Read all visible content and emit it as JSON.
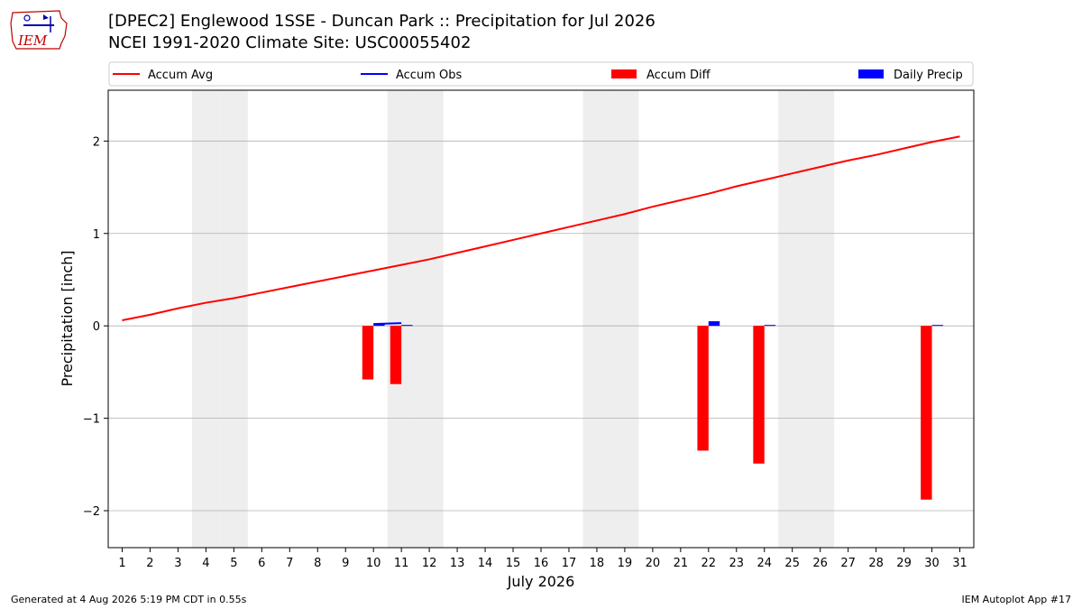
{
  "header": {
    "logo_text": "IEM",
    "title_line1": "[DPEC2] Englewood 1SSE - Duncan Park :: Precipitation for Jul 2026",
    "title_line2": "NCEI 1991-2020 Climate Site: USC00055402"
  },
  "footer": {
    "generated": "Generated at 4 Aug 2026 5:19 PM CDT in 0.55s",
    "app": "IEM Autoplot App #17"
  },
  "colors": {
    "accum_avg": "#ff0000",
    "accum_obs": "#0000ff",
    "accum_diff": "#ff0000",
    "daily_precip": "#0000ff",
    "weekend_shade": "#eeeeee",
    "grid": "#b0b0b0"
  },
  "chart_data": {
    "type": "bar",
    "xlabel": "July 2026",
    "ylabel": "Precipitation [inch]",
    "xlim": [
      0.5,
      31.5
    ],
    "ylim": [
      -2.4,
      2.55
    ],
    "yticks": [
      -2,
      -1,
      0,
      1,
      2
    ],
    "ytick_labels": [
      "−2",
      "−1",
      "0",
      "1",
      "2"
    ],
    "grid": "horizontal",
    "legend_position": "top",
    "legend": [
      {
        "label": "Accum Avg",
        "kind": "line",
        "color": "#ff0000"
      },
      {
        "label": "Accum Obs",
        "kind": "line",
        "color": "#0000ff"
      },
      {
        "label": "Accum Diff",
        "kind": "bar",
        "color": "#ff0000"
      },
      {
        "label": "Daily Precip",
        "kind": "bar",
        "color": "#0000ff"
      }
    ],
    "days": [
      1,
      2,
      3,
      4,
      5,
      6,
      7,
      8,
      9,
      10,
      11,
      12,
      13,
      14,
      15,
      16,
      17,
      18,
      19,
      20,
      21,
      22,
      23,
      24,
      25,
      26,
      27,
      28,
      29,
      30,
      31
    ],
    "weekend_days": [
      4,
      5,
      11,
      12,
      18,
      19,
      25,
      26
    ],
    "series": [
      {
        "name": "Accum Avg",
        "type": "line",
        "values": [
          0.06,
          0.12,
          0.19,
          0.25,
          0.3,
          0.36,
          0.42,
          0.48,
          0.54,
          0.6,
          0.66,
          0.72,
          0.79,
          0.86,
          0.93,
          1.0,
          1.07,
          1.14,
          1.21,
          1.29,
          1.36,
          1.43,
          1.51,
          1.58,
          1.65,
          1.72,
          1.79,
          1.85,
          1.92,
          1.99,
          2.05
        ]
      },
      {
        "name": "Accum Obs",
        "type": "line",
        "values": [
          0,
          0,
          0,
          0,
          0,
          0,
          0,
          0,
          0,
          0.02,
          0.03,
          0.03,
          0.03,
          0.03,
          0.03,
          0.03,
          0.03,
          0.03,
          0.03,
          0.03,
          0.03,
          0.08,
          0.08,
          0.09,
          0.09,
          0.09,
          0.09,
          0.09,
          0.09,
          0.1,
          0.1
        ]
      },
      {
        "name": "Accum Diff",
        "type": "bar",
        "days": [
          10,
          11,
          22,
          24,
          30
        ],
        "values": [
          -0.58,
          -0.63,
          -1.35,
          -1.49,
          -1.88
        ]
      },
      {
        "name": "Daily Precip",
        "type": "bar",
        "days": [
          10,
          11,
          22,
          24,
          30
        ],
        "values": [
          0.02,
          0.01,
          0.05,
          0.01,
          0.01
        ]
      }
    ]
  }
}
